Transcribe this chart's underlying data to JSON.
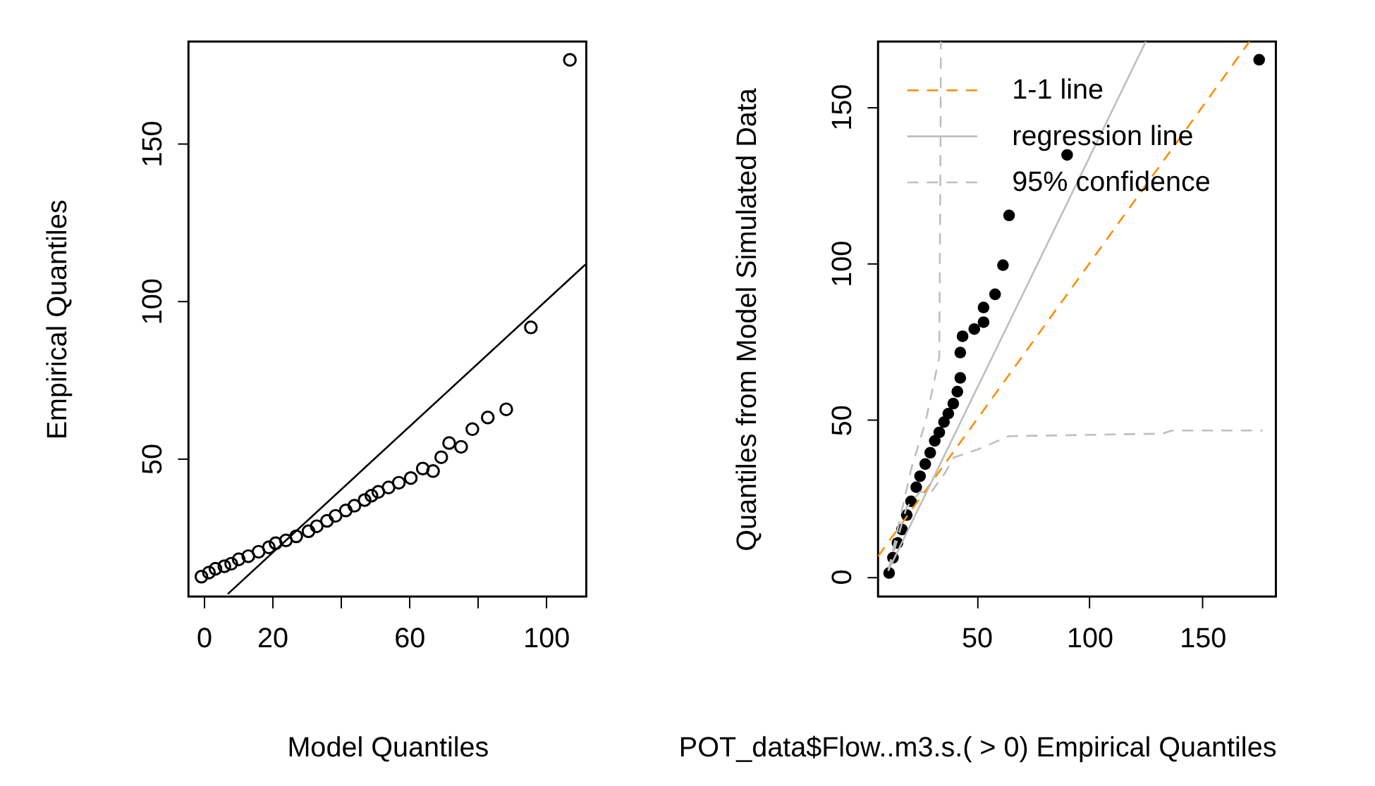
{
  "chart_data": [
    {
      "type": "scatter",
      "xlabel": "Model Quantiles",
      "ylabel": "Empirical Quantiles",
      "xlim": [
        -4.5,
        111.8
      ],
      "ylim": [
        6.2,
        182.3
      ],
      "xticks": [
        0,
        20,
        {
          "value": 40,
          "label": null
        },
        60,
        {
          "value": 80,
          "label": null
        },
        100
      ],
      "yticks": [
        50,
        100,
        150
      ],
      "grid": false,
      "legend": false,
      "series": [
        {
          "type": "scatter",
          "marker": "circle",
          "color": "#000000",
          "x": [
            -0.7,
            1.5,
            3.4,
            6,
            8,
            10.2,
            13,
            16,
            19,
            21,
            24,
            27,
            30.6,
            33,
            36,
            38.5,
            41.5,
            44,
            47,
            49,
            51,
            54,
            57,
            60.5,
            64,
            67,
            69.4,
            71.7,
            75.2,
            78.5,
            83,
            88.4,
            95.6,
            107
          ],
          "values": [
            12.5,
            13.8,
            15,
            15.8,
            16.6,
            18,
            19,
            20.4,
            21.8,
            23.1,
            24,
            25.3,
            26.9,
            28.5,
            30.2,
            31.8,
            33.5,
            35,
            36.8,
            38.2,
            39.4,
            40.8,
            42.3,
            43.8,
            46.8,
            46,
            50.4,
            54.9,
            53.7,
            59.3,
            63,
            65.6,
            91.6,
            176.5
          ]
        },
        {
          "type": "line",
          "color": "#000000",
          "line_style": "solid",
          "x": [
            7,
            111.5
          ],
          "values": [
            7,
            111.5
          ]
        }
      ]
    },
    {
      "type": "scatter",
      "xlabel": "POT_data$Flow..m3.s.( > 0) Empirical Quantiles",
      "ylabel": "Quantiles from Model Simulated Data",
      "xlim": [
        6.4,
        182.5
      ],
      "ylim": [
        -6.4,
        170.8
      ],
      "xticks": [
        50,
        100,
        150
      ],
      "yticks": [
        0,
        50,
        100,
        150
      ],
      "grid": false,
      "legend": "top left",
      "series": [
        {
          "type": "scatter",
          "marker": "circle",
          "color": "#000000",
          "x": [
            11.3,
            13,
            15,
            17,
            19.1,
            21,
            23.3,
            25,
            27.3,
            29.5,
            31.5,
            33.5,
            35.6,
            37.5,
            39.7,
            41.5,
            42.8,
            42.8,
            43.8,
            49,
            53.1,
            53.1,
            58.2,
            61.7,
            64.4,
            90.1,
            175.1
          ],
          "values": [
            1.1,
            6,
            10.7,
            15,
            19.6,
            24,
            28.5,
            32,
            35.9,
            39.5,
            43.3,
            46,
            49.3,
            52,
            55.2,
            59,
            63.4,
            71.5,
            76.7,
            79,
            81.2,
            85.9,
            90.1,
            99.4,
            115.3,
            134.6,
            165
          ]
        },
        {
          "type": "line",
          "name": "1-1 line",
          "color": "#ff8c00",
          "line_style": "dashed",
          "x": [
            6.4,
            170.8
          ],
          "values": [
            6.4,
            170.8
          ]
        },
        {
          "type": "line",
          "name": "regression line",
          "color": "#bebebe",
          "line_style": "solid",
          "x": [
            10.9,
            124.9
          ],
          "values": [
            1.8,
            170.8
          ]
        },
        {
          "type": "line",
          "name": "95% confidence",
          "color": "#bebebe",
          "line_style": "dashed",
          "x": [
            11,
            21.1,
            27.4,
            33.5,
            34,
            34.2
          ],
          "values": [
            2,
            34.4,
            49.3,
            70,
            129.4,
            170.8
          ]
        },
        {
          "type": "line",
          "color": "#bebebe",
          "line_style": "dashed",
          "x": [
            11,
            19,
            25,
            30,
            36,
            40,
            50,
            64.4,
            132.3,
            136.4,
            176.5
          ],
          "values": [
            2,
            22,
            27,
            27,
            33,
            38,
            40.4,
            44.8,
            45.6,
            46.6,
            46.6
          ]
        }
      ]
    }
  ]
}
